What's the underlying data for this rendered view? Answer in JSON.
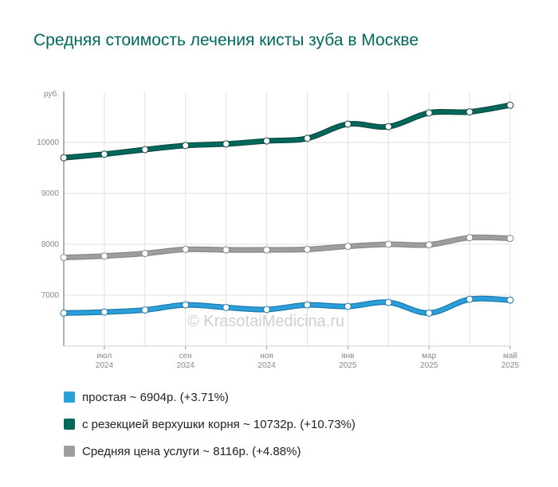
{
  "page": {
    "title": "Средняя стоимость лечения кисты зуба в Москве",
    "watermark": "© KrasotaiMedicina.ru"
  },
  "chart_data": {
    "type": "line",
    "y_unit_label": "руб.",
    "ylim": [
      6000,
      11000
    ],
    "y_ticks": [
      7000,
      8000,
      9000,
      10000
    ],
    "x_ticks": [
      {
        "index": 1,
        "month": "июл",
        "year": "2024"
      },
      {
        "index": 3,
        "month": "сен",
        "year": "2024"
      },
      {
        "index": 5,
        "month": "ноя",
        "year": "2024"
      },
      {
        "index": 7,
        "month": "янв",
        "year": "2025"
      },
      {
        "index": 9,
        "month": "мар",
        "year": "2025"
      },
      {
        "index": 11,
        "month": "май",
        "year": "2025"
      }
    ],
    "x": [
      "2024-06",
      "2024-07",
      "2024-08",
      "2024-09",
      "2024-10",
      "2024-11",
      "2024-12",
      "2025-01",
      "2025-02",
      "2025-03",
      "2025-04",
      "2025-05"
    ],
    "grid": true,
    "legend_position": "bottom",
    "series": [
      {
        "name": "простая",
        "legend_label": "простая ~ 6904р. (+3.71%)",
        "color": "#2a9fd8",
        "outline": "#1c7ab0",
        "values": [
          6650,
          6670,
          6710,
          6810,
          6760,
          6720,
          6810,
          6780,
          6860,
          6650,
          6920,
          6904
        ]
      },
      {
        "name": "с резекцией верхушки корня",
        "legend_label": "с резекцией верхушки корня ~ 10732р. (+10.73%)",
        "color": "#00695c",
        "outline": "#0d4a42",
        "values": [
          9700,
          9770,
          9860,
          9940,
          9970,
          10030,
          10080,
          10360,
          10310,
          10580,
          10600,
          10732
        ]
      },
      {
        "name": "Средняя цена услуги",
        "legend_label": "Средняя цена услуги ~ 8116р. (+4.88%)",
        "color": "#9e9e9e",
        "outline": "#888888",
        "values": [
          7740,
          7770,
          7820,
          7900,
          7890,
          7890,
          7900,
          7960,
          8000,
          7990,
          8130,
          8116
        ]
      }
    ]
  }
}
